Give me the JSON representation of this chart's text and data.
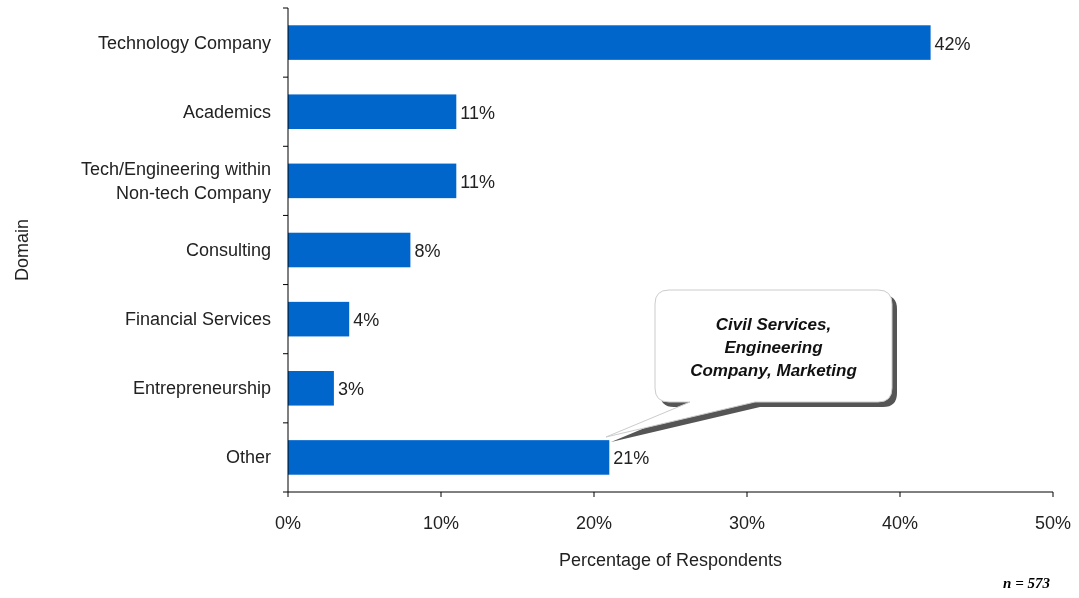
{
  "chart_data": {
    "type": "bar",
    "orientation": "horizontal",
    "ylabel": "Domain",
    "xlabel": "Percentage of Respondents",
    "categories": [
      "Technology Company",
      "Academics",
      "Tech/Engineering within Non-tech Company",
      "Consulting",
      "Financial Services",
      "Entrepreneurship",
      "Other"
    ],
    "values": [
      42,
      11,
      11,
      8,
      4,
      3,
      21
    ],
    "value_labels": [
      "42%",
      "11%",
      "11%",
      "8%",
      "4%",
      "3%",
      "21%"
    ],
    "color": "#0066cc",
    "xlim": [
      0,
      50
    ],
    "xticks": [
      {
        "value": 0,
        "label": "0%"
      },
      {
        "value": 10,
        "label": "10%"
      },
      {
        "value": 20,
        "label": "20%"
      },
      {
        "value": 30,
        "label": "30%"
      },
      {
        "value": 40,
        "label": "40%"
      },
      {
        "value": 50,
        "label": "50%"
      }
    ],
    "grid": false,
    "annotations": [
      "Civil Services, Engineering Company, Marketing",
      "n = 573"
    ]
  }
}
